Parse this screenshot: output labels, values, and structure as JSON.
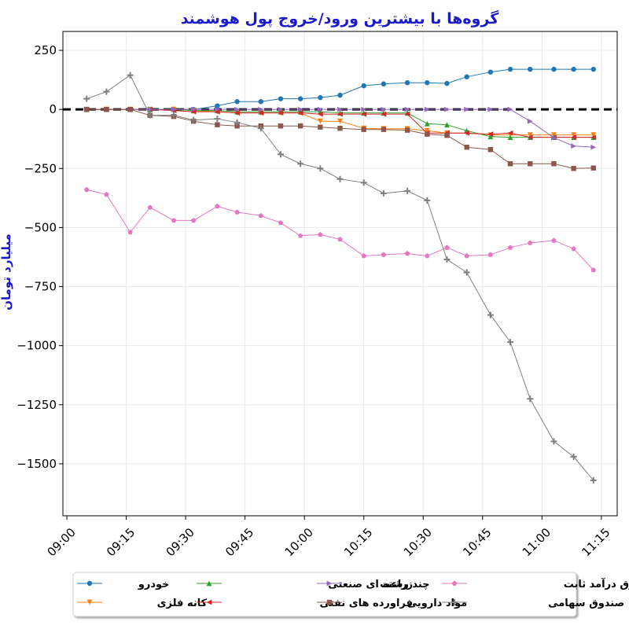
{
  "chart_data": {
    "type": "line",
    "title": "گروه‌ها با بیشترین ورود/خروج پول هوشمند",
    "xlabel": "",
    "ylabel": "میلیارد تومان",
    "x_ticks": [
      "09:00",
      "09:15",
      "09:30",
      "09:45",
      "10:00",
      "10:15",
      "10:30",
      "10:45",
      "11:00",
      "11:15"
    ],
    "y_ticks": [
      250,
      0,
      -250,
      -500,
      -750,
      -1000,
      -1250,
      -1500
    ],
    "ylim": [
      -1720,
      330
    ],
    "xlim": [
      "08:59",
      "11:19"
    ],
    "zero_line": true,
    "grid": true,
    "legend_position": "bottom",
    "x": [
      "09:05",
      "09:10",
      "09:16",
      "09:21",
      "09:27",
      "09:32",
      "09:38",
      "09:43",
      "09:49",
      "09:54",
      "09:59",
      "10:04",
      "10:09",
      "10:15",
      "10:20",
      "10:26",
      "10:31",
      "10:36",
      "10:41",
      "10:47",
      "10:52",
      "10:57",
      "11:03",
      "11:08",
      "11:13"
    ],
    "series": [
      {
        "name": "خودرو",
        "color": "#1f77b4",
        "marker": "circle",
        "values": [
          0,
          0,
          0,
          0,
          0,
          0,
          15,
          33,
          33,
          45,
          45,
          50,
          60,
          100,
          108,
          113,
          113,
          110,
          138,
          158,
          170,
          170,
          170,
          170,
          170
        ]
      },
      {
        "name": "کانه فلزی",
        "color": "#ff7f0e",
        "marker": "triangle-down",
        "values": [
          0,
          0,
          0,
          0,
          0,
          -5,
          -10,
          -15,
          -15,
          -15,
          -15,
          -50,
          -50,
          -80,
          -82,
          -82,
          -90,
          -100,
          -100,
          -108,
          -108,
          -108,
          -108,
          -108,
          -108
        ]
      },
      {
        "name": "چند رشته ای صنعتی",
        "color": "#2ca02c",
        "marker": "triangle-up",
        "values": [
          0,
          0,
          0,
          0,
          0,
          -5,
          -5,
          -10,
          -10,
          -10,
          -10,
          -10,
          -15,
          -15,
          -15,
          -15,
          -60,
          -65,
          -90,
          -115,
          -118,
          -118,
          -118,
          -118,
          -118
        ]
      },
      {
        "name": "فراورده های نفتی",
        "color": "#d62728",
        "marker": "triangle-left",
        "values": [
          0,
          0,
          0,
          0,
          -5,
          -10,
          -10,
          -15,
          -15,
          -15,
          -15,
          -20,
          -20,
          -20,
          -20,
          -20,
          -100,
          -100,
          -100,
          -105,
          -100,
          -118,
          -118,
          -118,
          -118
        ]
      },
      {
        "name": "زراعت",
        "color": "#9467bd",
        "marker": "triangle-right",
        "values": [
          0,
          0,
          0,
          0,
          0,
          0,
          0,
          0,
          0,
          0,
          0,
          0,
          0,
          0,
          0,
          0,
          0,
          0,
          0,
          0,
          0,
          -50,
          -120,
          -155,
          -160
        ]
      },
      {
        "name": "مواد دارویی",
        "color": "#8c564b",
        "marker": "square",
        "values": [
          0,
          0,
          0,
          -25,
          -30,
          -50,
          -65,
          -70,
          -70,
          -70,
          -70,
          -75,
          -80,
          -85,
          -85,
          -88,
          -105,
          -110,
          -160,
          -170,
          -230,
          -230,
          -230,
          -250,
          -248
        ]
      },
      {
        "name": "صندوق درآمد ثابت",
        "color": "#e377c2",
        "marker": "pentagon",
        "values": [
          -340,
          -360,
          -520,
          -415,
          -470,
          -470,
          -410,
          -435,
          -450,
          -480,
          -535,
          -530,
          -550,
          -620,
          -615,
          -610,
          -620,
          -585,
          -620,
          -615,
          -585,
          -565,
          -555,
          -590,
          -680
        ]
      },
      {
        "name": "صندوق سهامی",
        "color": "#7f7f7f",
        "marker": "plus",
        "values": [
          45,
          75,
          145,
          -25,
          -25,
          -45,
          -40,
          -55,
          -80,
          -190,
          -230,
          -250,
          -295,
          -310,
          -355,
          -345,
          -385,
          -635,
          -690,
          -870,
          -985,
          -1225,
          -1405,
          -1470,
          -1570
        ]
      }
    ]
  }
}
